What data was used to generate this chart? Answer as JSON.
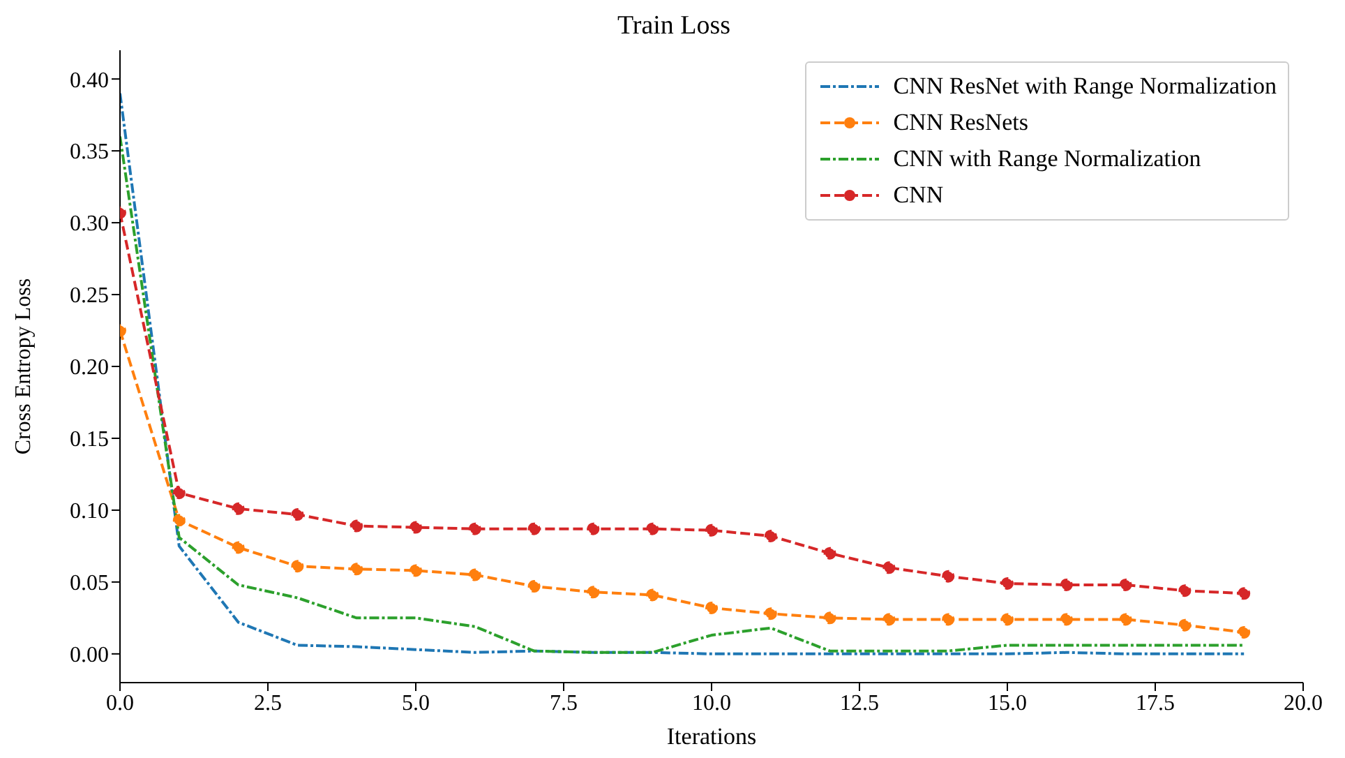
{
  "chart_data": {
    "type": "line",
    "title": "Train Loss",
    "xlabel": "Iterations",
    "ylabel": "Cross Entropy Loss",
    "x": [
      0,
      1,
      2,
      3,
      4,
      5,
      6,
      7,
      8,
      9,
      10,
      11,
      12,
      13,
      14,
      15,
      16,
      17,
      18,
      19
    ],
    "xlim": [
      0,
      20
    ],
    "xticks": [
      {
        "value": 0,
        "label": "0.0"
      },
      {
        "value": 2.5,
        "label": "2.5"
      },
      {
        "value": 5,
        "label": "5.0"
      },
      {
        "value": 7.5,
        "label": "7.5"
      },
      {
        "value": 10,
        "label": "10.0"
      },
      {
        "value": 12.5,
        "label": "12.5"
      },
      {
        "value": 15,
        "label": "15.0"
      },
      {
        "value": 17.5,
        "label": "17.5"
      },
      {
        "value": 20,
        "label": "20.0"
      }
    ],
    "ylim": [
      -0.02,
      0.42
    ],
    "yticks": [
      {
        "value": 0,
        "label": "0.00"
      },
      {
        "value": 0.05,
        "label": "0.05"
      },
      {
        "value": 0.1,
        "label": "0.10"
      },
      {
        "value": 0.15,
        "label": "0.15"
      },
      {
        "value": 0.2,
        "label": "0.20"
      },
      {
        "value": 0.25,
        "label": "0.25"
      },
      {
        "value": 0.3,
        "label": "0.30"
      },
      {
        "value": 0.35,
        "label": "0.35"
      },
      {
        "value": 0.4,
        "label": "0.40"
      }
    ],
    "grid": false,
    "legend": "top right",
    "series": [
      {
        "name": "CNN ResNet with Range Normalization",
        "color": "#1f77b4",
        "marker": "none",
        "line_style": "dashdot",
        "values": [
          0.39,
          0.075,
          0.022,
          0.006,
          0.005,
          0.003,
          0.001,
          0.002,
          0.001,
          0.001,
          0,
          0,
          0,
          0,
          0,
          0,
          0.001,
          0,
          0,
          0
        ]
      },
      {
        "name": "CNN ResNets",
        "color": "#ff7f0e",
        "marker": "circle",
        "line_style": "dashed",
        "values": [
          0.225,
          0.093,
          0.074,
          0.061,
          0.059,
          0.058,
          0.055,
          0.047,
          0.043,
          0.041,
          0.032,
          0.028,
          0.025,
          0.024,
          0.024,
          0.024,
          0.024,
          0.024,
          0.02,
          0.015
        ]
      },
      {
        "name": "CNN with Range Normalization",
        "color": "#2ca02c",
        "marker": "none",
        "line_style": "dashdot",
        "values": [
          0.36,
          0.081,
          0.048,
          0.039,
          0.025,
          0.025,
          0.019,
          0.002,
          0.001,
          0.001,
          0.013,
          0.018,
          0.002,
          0.002,
          0.002,
          0.006,
          0.006,
          0.006,
          0.006,
          0.006
        ]
      },
      {
        "name": "CNN",
        "color": "#d62728",
        "marker": "circle",
        "line_style": "dashed",
        "values": [
          0.307,
          0.112,
          0.101,
          0.097,
          0.089,
          0.088,
          0.087,
          0.087,
          0.087,
          0.087,
          0.086,
          0.082,
          0.07,
          0.06,
          0.054,
          0.049,
          0.048,
          0.048,
          0.044,
          0.042
        ]
      }
    ]
  }
}
